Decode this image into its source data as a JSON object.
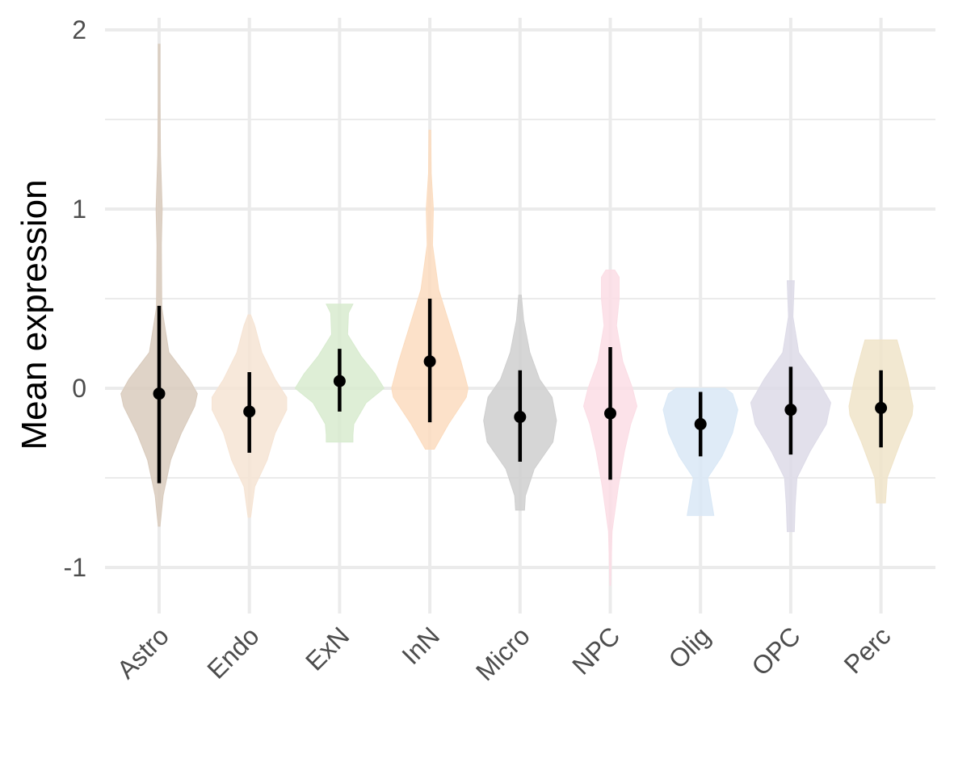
{
  "chart_data": {
    "type": "violin",
    "title": "",
    "xlabel": "",
    "ylabel": "Mean expression",
    "ylim": [
      -1.25,
      2.07
    ],
    "y_ticks": [
      -1,
      0,
      1,
      2
    ],
    "y_tick_labels": [
      "-1",
      "0",
      "1",
      "2"
    ],
    "y_minor_ticks": [
      -0.5,
      0.5,
      1.5
    ],
    "grid": true,
    "legend": "none",
    "categories": [
      "Astro",
      "Endo",
      "ExN",
      "InN",
      "Micro",
      "NPC",
      "Olig",
      "OPC",
      "Perc"
    ],
    "colors": [
      "#d9cbbd",
      "#f6e4d4",
      "#d8ebcf",
      "#fbdcbf",
      "#cfcfcf",
      "#fbdde5",
      "#d9e8f6",
      "#dddbe8",
      "#f0e4c9"
    ],
    "mean": [
      -0.03,
      -0.13,
      0.04,
      0.15,
      -0.16,
      -0.14,
      -0.2,
      -0.12,
      -0.11
    ],
    "sd_low": [
      -0.53,
      -0.36,
      -0.13,
      -0.19,
      -0.41,
      -0.51,
      -0.38,
      -0.37,
      -0.33
    ],
    "sd_high": [
      0.46,
      0.09,
      0.22,
      0.5,
      0.1,
      0.23,
      -0.02,
      0.12,
      0.1
    ],
    "density": [
      {
        "y": [
          -0.77,
          -0.6,
          -0.4,
          -0.25,
          -0.1,
          -0.03,
          0.05,
          0.2,
          0.45,
          0.8,
          1.0,
          1.3,
          1.6,
          1.92
        ],
        "w": [
          0.02,
          0.09,
          0.26,
          0.5,
          0.8,
          0.86,
          0.68,
          0.22,
          0.06,
          0.05,
          0.07,
          0.03,
          0.02,
          0.02
        ]
      },
      {
        "y": [
          -0.72,
          -0.55,
          -0.4,
          -0.25,
          -0.12,
          -0.05,
          0.05,
          0.2,
          0.35,
          0.41
        ],
        "w": [
          0.03,
          0.12,
          0.4,
          0.58,
          0.84,
          0.84,
          0.58,
          0.28,
          0.12,
          0.03
        ]
      },
      {
        "y": [
          -0.3,
          -0.26,
          -0.2,
          -0.08,
          0.0,
          0.08,
          0.18,
          0.3,
          0.42,
          0.47
        ],
        "w": [
          0.3,
          0.3,
          0.32,
          0.6,
          1.0,
          0.8,
          0.48,
          0.18,
          0.2,
          0.3
        ]
      },
      {
        "y": [
          -0.34,
          -0.2,
          -0.05,
          0.0,
          0.15,
          0.35,
          0.55,
          0.8,
          1.0,
          1.2,
          1.44
        ],
        "w": [
          0.1,
          0.42,
          0.82,
          0.86,
          0.7,
          0.45,
          0.2,
          0.06,
          0.08,
          0.03,
          0.02
        ]
      },
      {
        "y": [
          -0.68,
          -0.6,
          -0.45,
          -0.3,
          -0.18,
          -0.05,
          0.05,
          0.2,
          0.38,
          0.52
        ],
        "w": [
          0.1,
          0.12,
          0.32,
          0.74,
          0.82,
          0.72,
          0.44,
          0.22,
          0.08,
          0.03
        ]
      },
      {
        "y": [
          -1.1,
          -0.8,
          -0.55,
          -0.35,
          -0.2,
          -0.1,
          0.0,
          0.15,
          0.35,
          0.5,
          0.62,
          0.66
        ],
        "w": [
          0.01,
          0.04,
          0.18,
          0.32,
          0.46,
          0.6,
          0.5,
          0.28,
          0.14,
          0.2,
          0.2,
          0.1
        ]
      },
      {
        "y": [
          -0.71,
          -0.65,
          -0.5,
          -0.38,
          -0.25,
          -0.12,
          -0.03,
          0.0
        ],
        "w": [
          0.3,
          0.26,
          0.16,
          0.48,
          0.72,
          0.84,
          0.72,
          0.55
        ]
      },
      {
        "y": [
          -0.8,
          -0.65,
          -0.5,
          -0.35,
          -0.2,
          -0.08,
          0.05,
          0.2,
          0.4,
          0.6
        ],
        "w": [
          0.08,
          0.1,
          0.14,
          0.44,
          0.8,
          0.9,
          0.6,
          0.18,
          0.05,
          0.08
        ]
      },
      {
        "y": [
          -0.64,
          -0.5,
          -0.3,
          -0.15,
          -0.1,
          0.05,
          0.2,
          0.27
        ],
        "w": [
          0.1,
          0.14,
          0.44,
          0.7,
          0.72,
          0.6,
          0.44,
          0.36
        ]
      }
    ]
  }
}
